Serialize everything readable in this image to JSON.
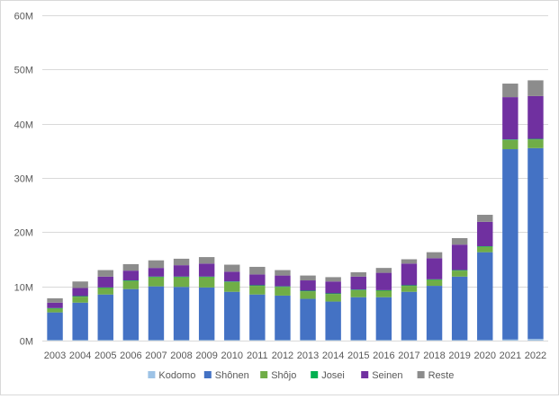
{
  "chart_data": {
    "type": "bar",
    "stacked": true,
    "title": "",
    "xlabel": "",
    "ylabel": "",
    "ylim": [
      0,
      60
    ],
    "y_ticks": [
      "0M",
      "10M",
      "20M",
      "30M",
      "40M",
      "50M",
      "60M"
    ],
    "grid": true,
    "legend_position": "bottom",
    "categories": [
      "2003",
      "2004",
      "2005",
      "2006",
      "2007",
      "2008",
      "2009",
      "2010",
      "2011",
      "2012",
      "2013",
      "2014",
      "2015",
      "2016",
      "2017",
      "2018",
      "2019",
      "2020",
      "2021",
      "2022"
    ],
    "series": [
      {
        "name": "Kodomo",
        "color": "#9dc3e6",
        "values": [
          0.1,
          0.1,
          0.1,
          0.1,
          0.1,
          0.1,
          0.1,
          0.1,
          0.1,
          0.1,
          0.1,
          0.1,
          0.1,
          0.1,
          0.1,
          0.1,
          0.1,
          0.1,
          0.2,
          0.3
        ]
      },
      {
        "name": "Shônen",
        "color": "#4472c4",
        "values": [
          5.1,
          6.9,
          8.4,
          9.4,
          9.9,
          9.8,
          9.7,
          8.9,
          8.4,
          8.2,
          7.6,
          7.1,
          7.9,
          7.9,
          8.9,
          10.0,
          11.7,
          16.2,
          35.1,
          35.2
        ]
      },
      {
        "name": "Shôjo",
        "color": "#70ad47",
        "values": [
          0.7,
          1.1,
          1.2,
          1.5,
          1.7,
          1.8,
          1.9,
          1.8,
          1.6,
          1.6,
          1.4,
          1.4,
          1.3,
          1.2,
          1.1,
          1.1,
          1.1,
          1.0,
          1.7,
          1.6
        ]
      },
      {
        "name": "Josei",
        "color": "#00b050",
        "values": [
          0.1,
          0.1,
          0.1,
          0.1,
          0.1,
          0.1,
          0.1,
          0.1,
          0.1,
          0.1,
          0.1,
          0.1,
          0.1,
          0.1,
          0.1,
          0.1,
          0.1,
          0.1,
          0.1,
          0.1
        ]
      },
      {
        "name": "Seinen",
        "color": "#7030a0",
        "values": [
          1.0,
          1.5,
          2.0,
          1.8,
          1.6,
          2.1,
          2.4,
          1.8,
          2.0,
          2.0,
          1.9,
          2.2,
          2.4,
          3.2,
          4.0,
          3.9,
          4.7,
          4.5,
          7.8,
          7.9
        ]
      },
      {
        "name": "Reste",
        "color": "#8c8c8c",
        "values": [
          0.8,
          1.2,
          1.2,
          1.2,
          1.4,
          1.2,
          1.2,
          1.3,
          1.4,
          1.0,
          0.9,
          0.8,
          0.8,
          0.9,
          0.8,
          1.1,
          1.2,
          1.3,
          2.5,
          2.9
        ]
      }
    ]
  }
}
